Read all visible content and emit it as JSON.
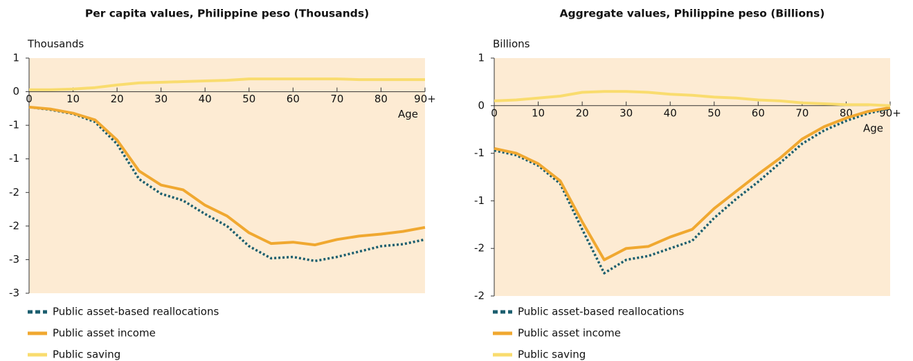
{
  "chart_data": [
    {
      "type": "line",
      "title": "Per capita values, Philippine peso (Thousands)",
      "y_label": "Thousands",
      "x_label": "Age",
      "x": [
        0,
        5,
        10,
        15,
        20,
        25,
        30,
        35,
        40,
        45,
        50,
        55,
        60,
        65,
        70,
        75,
        80,
        85,
        90
      ],
      "xlim": [
        0,
        90
      ],
      "xticks": [
        0,
        10,
        20,
        30,
        40,
        50,
        60,
        70,
        80,
        {
          "value": 90,
          "label": "90+"
        }
      ],
      "ylim": [
        -3,
        0.5
      ],
      "yticks": [
        {
          "value": 0.5,
          "label": "1"
        },
        0,
        {
          "value": -0.5,
          "label": "-1"
        },
        {
          "value": -1,
          "label": "-1"
        },
        {
          "value": -1.5,
          "label": "-2"
        },
        {
          "value": -2,
          "label": "-2"
        },
        {
          "value": -2.5,
          "label": "-3"
        },
        {
          "value": -3,
          "label": "-3"
        }
      ],
      "series": [
        {
          "name": "Public asset-based reallocations",
          "color": "#1b5e6e",
          "dashed": true,
          "values": [
            -0.23,
            -0.27,
            -0.33,
            -0.45,
            -0.78,
            -1.3,
            -1.52,
            -1.62,
            -1.82,
            -2.0,
            -2.3,
            -2.48,
            -2.46,
            -2.52,
            -2.46,
            -2.38,
            -2.3,
            -2.27,
            -2.2
          ]
        },
        {
          "name": "Public asset income",
          "color": "#f0a830",
          "values": [
            -0.23,
            -0.26,
            -0.32,
            -0.42,
            -0.72,
            -1.18,
            -1.39,
            -1.46,
            -1.69,
            -1.85,
            -2.1,
            -2.26,
            -2.24,
            -2.28,
            -2.2,
            -2.15,
            -2.12,
            -2.08,
            -2.02
          ]
        },
        {
          "name": "Public saving",
          "color": "#f9dc6e",
          "values": [
            0.03,
            0.03,
            0.04,
            0.06,
            0.1,
            0.13,
            0.14,
            0.15,
            0.16,
            0.17,
            0.19,
            0.19,
            0.19,
            0.19,
            0.19,
            0.18,
            0.18,
            0.18,
            0.18
          ]
        }
      ]
    },
    {
      "type": "line",
      "title": "Aggregate values, Philippine peso (Billions)",
      "y_label": "Billions",
      "x_label": "Age",
      "x": [
        0,
        5,
        10,
        15,
        20,
        25,
        30,
        35,
        40,
        45,
        50,
        55,
        60,
        65,
        70,
        75,
        80,
        85,
        90
      ],
      "xlim": [
        0,
        90
      ],
      "xticks": [
        0,
        10,
        20,
        30,
        40,
        50,
        60,
        70,
        80,
        {
          "value": 90,
          "label": "90+"
        }
      ],
      "ylim": [
        -2,
        0.5
      ],
      "yticks": [
        {
          "value": 0.5,
          "label": "1"
        },
        0,
        {
          "value": -0.5,
          "label": "-1"
        },
        {
          "value": -1,
          "label": "-1"
        },
        {
          "value": -1.5,
          "label": "-2"
        },
        {
          "value": -2,
          "label": "-2"
        }
      ],
      "series": [
        {
          "name": "Public asset-based reallocations",
          "color": "#1b5e6e",
          "dashed": true,
          "values": [
            -0.47,
            -0.52,
            -0.63,
            -0.82,
            -1.3,
            -1.76,
            -1.62,
            -1.58,
            -1.5,
            -1.42,
            -1.18,
            -0.98,
            -0.8,
            -0.6,
            -0.4,
            -0.26,
            -0.16,
            -0.08,
            -0.03
          ]
        },
        {
          "name": "Public asset income",
          "color": "#f0a830",
          "values": [
            -0.45,
            -0.5,
            -0.61,
            -0.79,
            -1.22,
            -1.62,
            -1.5,
            -1.48,
            -1.38,
            -1.3,
            -1.08,
            -0.9,
            -0.72,
            -0.55,
            -0.35,
            -0.22,
            -0.13,
            -0.06,
            -0.02
          ]
        },
        {
          "name": "Public saving",
          "color": "#f9dc6e",
          "values": [
            0.05,
            0.06,
            0.08,
            0.1,
            0.14,
            0.15,
            0.15,
            0.14,
            0.12,
            0.11,
            0.09,
            0.08,
            0.06,
            0.05,
            0.03,
            0.02,
            0.01,
            0.01,
            0
          ]
        }
      ]
    }
  ]
}
